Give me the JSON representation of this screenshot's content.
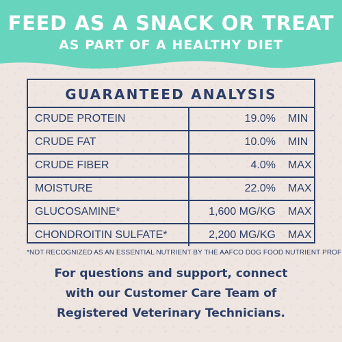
{
  "banner": {
    "color": "#67d4bd",
    "title": "FEED AS A SNACK OR TREAT",
    "subtitle": "AS PART OF A HEALTHY DIET"
  },
  "analysis": {
    "title": "GUARANTEED ANALYSIS",
    "rows": [
      {
        "name": "CRUDE PROTEIN",
        "value": "19.0%",
        "qualifier": "MIN"
      },
      {
        "name": "CRUDE FAT",
        "value": "10.0%",
        "qualifier": "MIN"
      },
      {
        "name": "CRUDE FIBER",
        "value": "4.0%",
        "qualifier": "MAX"
      },
      {
        "name": "MOISTURE",
        "value": "22.0%",
        "qualifier": "MAX"
      },
      {
        "name": "GLUCOSAMINE*",
        "value": "1,600 MG/KG",
        "qualifier": "MAX"
      },
      {
        "name": "CHONDROITIN SULFATE*",
        "value": "2,200 MG/KG",
        "qualifier": "MAX"
      }
    ]
  },
  "footnote": "*NOT RECOGNIZED AS AN ESSENTIAL NUTRIENT BY THE AAFCO DOG FOOD NUTRIENT PROFILES",
  "support": {
    "line1": "For questions and support, connect",
    "line2": "with our Customer Care Team of",
    "line3": "Registered Veterinary Technicians."
  },
  "colors": {
    "background": "#efe6e2",
    "navy": "#2b3f69",
    "white": "#ffffff"
  }
}
